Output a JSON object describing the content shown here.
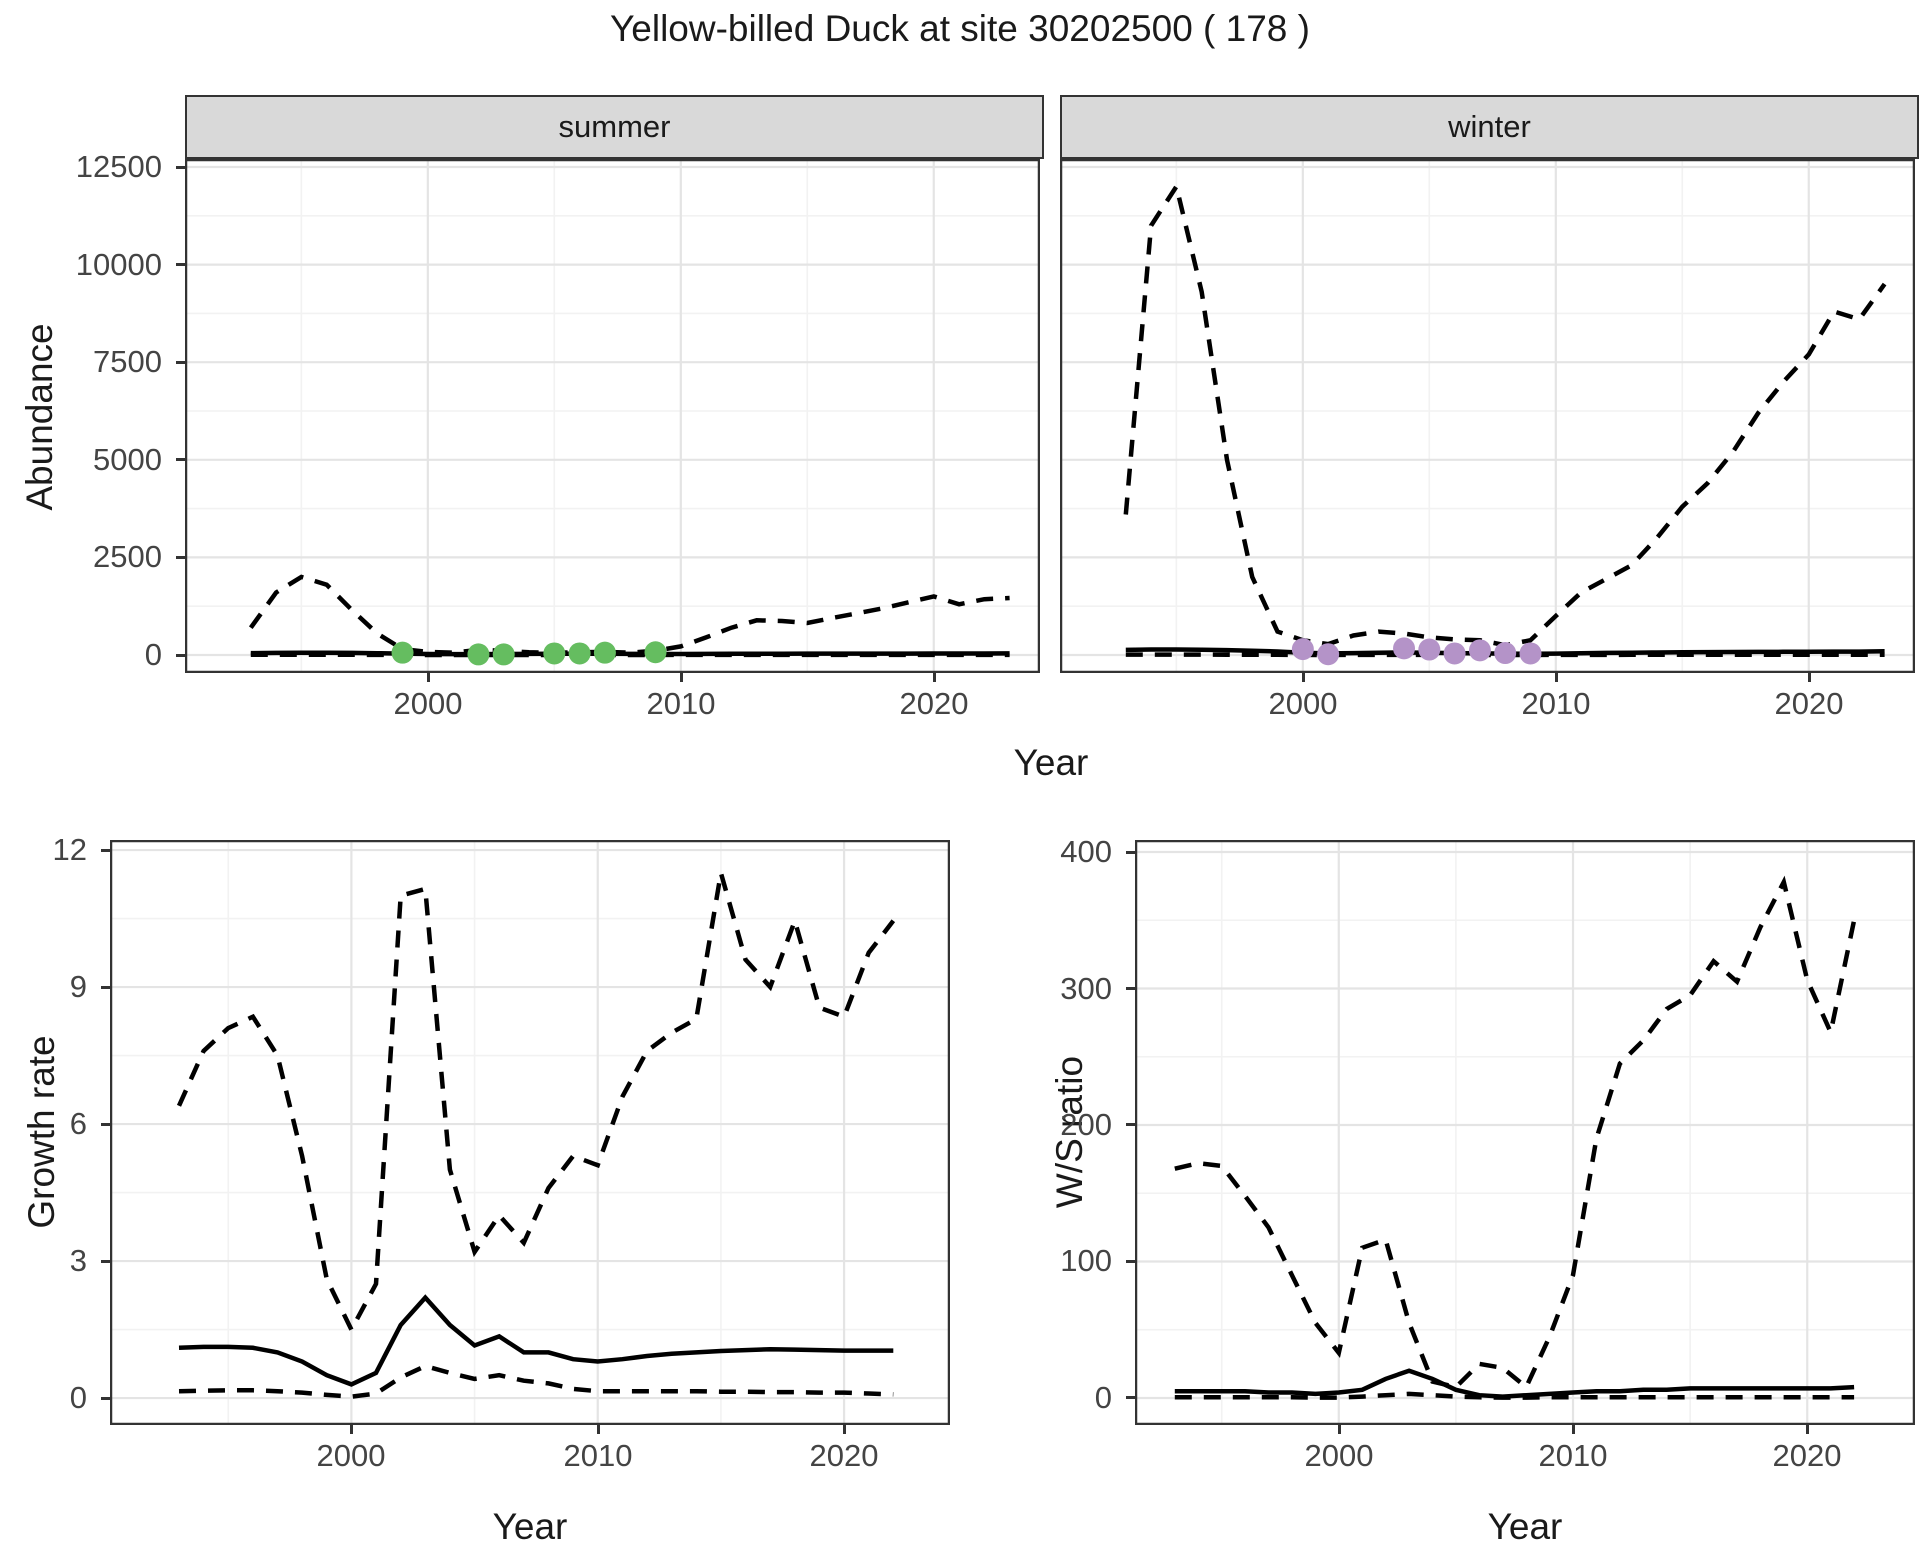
{
  "title": "Yellow-billed Duck at site 30202500 ( 178 )",
  "axis_titles": {
    "abundance": "Abundance",
    "year_top": "Year",
    "growth": "Growth rate",
    "year_bottom_left": "Year",
    "ws": "W/S ratio",
    "year_bottom_right": "Year"
  },
  "colors": {
    "line": "#000000",
    "summer_points": "#65bd60",
    "winter_points": "#b493c8",
    "strip_bg": "#d9d9d9",
    "panel_border": "#333333",
    "grid_major": "#e4e4e4",
    "grid_minor": "#f2f2f2",
    "tick_text": "#444444"
  },
  "chart_data": [
    {
      "type": "line",
      "id": "abundance-summer",
      "strip": "summer",
      "xlabel": "Year",
      "ylabel": "Abundance",
      "xlim": [
        1990.4,
        2024.2
      ],
      "ylim": [
        -461,
        12705
      ],
      "xticks": [
        2000,
        2010,
        2020
      ],
      "xticks_minor": [
        1995,
        2005,
        2015
      ],
      "yticks": [
        0,
        2500,
        5000,
        7500,
        10000,
        12500
      ],
      "yticks_minor": [
        1250,
        3750,
        6250,
        8750,
        11250
      ],
      "show_y_labels": true,
      "grid": true,
      "legend": "none",
      "years": [
        1993,
        1994,
        1995,
        1996,
        1997,
        1998,
        1999,
        2000,
        2001,
        2002,
        2003,
        2004,
        2005,
        2006,
        2007,
        2008,
        2009,
        2010,
        2011,
        2012,
        2013,
        2014,
        2015,
        2016,
        2017,
        2018,
        2019,
        2020,
        2021,
        2022,
        2023
      ],
      "series": [
        {
          "name": "upper_credible",
          "style": "dashed",
          "values": [
            700,
            1600,
            2000,
            1800,
            1150,
            550,
            150,
            80,
            60,
            130,
            110,
            70,
            60,
            70,
            80,
            60,
            110,
            220,
            450,
            700,
            890,
            870,
            820,
            950,
            1070,
            1200,
            1350,
            1500,
            1300,
            1430,
            1460
          ]
        },
        {
          "name": "median_estimate",
          "style": "solid",
          "values": [
            50,
            55,
            60,
            60,
            55,
            45,
            35,
            25,
            22,
            22,
            25,
            28,
            30,
            30,
            30,
            28,
            25,
            25,
            28,
            30,
            32,
            34,
            35,
            36,
            36,
            37,
            37,
            38,
            38,
            39,
            40
          ]
        },
        {
          "name": "lower_credible",
          "style": "dashed",
          "values": [
            5,
            5,
            5,
            5,
            4,
            3,
            2,
            1,
            1,
            1,
            1,
            1,
            1,
            1,
            1,
            1,
            1,
            2,
            2,
            2,
            3,
            3,
            3,
            3,
            3,
            3,
            3,
            3,
            3,
            3,
            3
          ]
        }
      ],
      "points": {
        "name": "observed-counts-summer",
        "color": "#65bd60",
        "x": [
          1999,
          2002,
          2003,
          2005,
          2006,
          2007,
          2009
        ],
        "y": [
          60,
          15,
          15,
          40,
          40,
          60,
          70
        ]
      }
    },
    {
      "type": "line",
      "id": "abundance-winter",
      "strip": "winter",
      "xlabel": "Year",
      "ylabel": "Abundance",
      "xlim": [
        1990.4,
        2024.2
      ],
      "ylim": [
        -461,
        12705
      ],
      "xticks": [
        2000,
        2010,
        2020
      ],
      "xticks_minor": [
        1995,
        2005,
        2015
      ],
      "yticks": [
        0,
        2500,
        5000,
        7500,
        10000,
        12500
      ],
      "yticks_minor": [
        1250,
        3750,
        6250,
        8750,
        11250
      ],
      "show_y_labels": false,
      "grid": true,
      "legend": "none",
      "years": [
        1993,
        1994,
        1995,
        1996,
        1997,
        1998,
        1999,
        2000,
        2001,
        2002,
        2003,
        2004,
        2005,
        2006,
        2007,
        2008,
        2009,
        2010,
        2011,
        2012,
        2013,
        2014,
        2015,
        2016,
        2017,
        2018,
        2019,
        2020,
        2021,
        2022,
        2023
      ],
      "series": [
        {
          "name": "upper_credible",
          "style": "dashed",
          "values": [
            3600,
            11000,
            12000,
            9300,
            5000,
            2000,
            600,
            380,
            280,
            500,
            600,
            550,
            450,
            400,
            380,
            250,
            380,
            1000,
            1600,
            1950,
            2300,
            3000,
            3800,
            4400,
            5200,
            6200,
            7000,
            7700,
            8800,
            8600,
            9500
          ]
        },
        {
          "name": "median_estimate",
          "style": "solid",
          "values": [
            130,
            140,
            140,
            135,
            125,
            110,
            90,
            60,
            40,
            50,
            60,
            65,
            60,
            50,
            40,
            35,
            30,
            35,
            45,
            55,
            60,
            65,
            70,
            75,
            78,
            80,
            82,
            84,
            86,
            88,
            95
          ]
        },
        {
          "name": "lower_credible",
          "style": "dashed",
          "values": [
            10,
            10,
            10,
            10,
            8,
            6,
            4,
            2,
            1,
            2,
            2,
            2,
            2,
            2,
            2,
            1,
            1,
            2,
            3,
            3,
            4,
            4,
            5,
            5,
            5,
            6,
            6,
            6,
            6,
            6,
            7
          ]
        }
      ],
      "points": {
        "name": "observed-counts-winter",
        "color": "#b493c8",
        "x": [
          2000,
          2001,
          2004,
          2005,
          2006,
          2007,
          2008,
          2009
        ],
        "y": [
          150,
          20,
          170,
          140,
          40,
          120,
          50,
          40
        ]
      }
    },
    {
      "type": "line",
      "id": "growth-rate",
      "strip": "",
      "xlabel": "Year",
      "ylabel": "Growth rate",
      "xlim": [
        1990.2,
        2024.3
      ],
      "ylim": [
        -0.59,
        12.22
      ],
      "xticks": [
        2000,
        2010,
        2020
      ],
      "xticks_minor": [
        1995,
        2005,
        2015
      ],
      "yticks": [
        0,
        3,
        6,
        9,
        12
      ],
      "yticks_minor": [
        1.5,
        4.5,
        7.5,
        10.5
      ],
      "show_y_labels": true,
      "grid": true,
      "legend": "none",
      "years": [
        1993,
        1994,
        1995,
        1996,
        1997,
        1998,
        1999,
        2000,
        2001,
        2002,
        2003,
        2004,
        2005,
        2006,
        2007,
        2008,
        2009,
        2010,
        2011,
        2012,
        2013,
        2014,
        2015,
        2016,
        2017,
        2018,
        2019,
        2020,
        2021,
        2022
      ],
      "series": [
        {
          "name": "upper_credible",
          "style": "dashed",
          "values": [
            6.4,
            7.6,
            8.1,
            8.35,
            7.5,
            5.3,
            2.6,
            1.5,
            2.5,
            11.0,
            11.15,
            5.0,
            3.2,
            4.0,
            3.4,
            4.6,
            5.3,
            5.1,
            6.6,
            7.6,
            8.0,
            8.3,
            11.5,
            9.6,
            9.0,
            10.45,
            8.55,
            8.35,
            9.75,
            10.45
          ]
        },
        {
          "name": "median_estimate",
          "style": "solid",
          "values": [
            1.1,
            1.12,
            1.12,
            1.1,
            1.0,
            0.8,
            0.5,
            0.3,
            0.55,
            1.6,
            2.2,
            1.6,
            1.15,
            1.35,
            1.0,
            1.0,
            0.85,
            0.8,
            0.85,
            0.92,
            0.97,
            1.0,
            1.03,
            1.05,
            1.07,
            1.06,
            1.05,
            1.04,
            1.04,
            1.04
          ]
        },
        {
          "name": "lower_credible",
          "style": "dashed",
          "values": [
            0.15,
            0.16,
            0.17,
            0.17,
            0.15,
            0.12,
            0.07,
            0.03,
            0.1,
            0.45,
            0.7,
            0.55,
            0.42,
            0.5,
            0.38,
            0.32,
            0.2,
            0.15,
            0.15,
            0.15,
            0.15,
            0.15,
            0.14,
            0.14,
            0.13,
            0.13,
            0.12,
            0.12,
            0.1,
            0.08
          ]
        }
      ],
      "points": null
    },
    {
      "type": "line",
      "id": "ws-ratio",
      "strip": "",
      "xlabel": "Year",
      "ylabel": "W/S ratio",
      "xlim": [
        1991.3,
        2024.6
      ],
      "ylim": [
        -19.8,
        408.8
      ],
      "xticks": [
        2000,
        2010,
        2020
      ],
      "xticks_minor": [
        1995,
        2005,
        2015
      ],
      "yticks": [
        0,
        100,
        200,
        300,
        400
      ],
      "yticks_minor": [
        50,
        150,
        250,
        350
      ],
      "show_y_labels": true,
      "grid": true,
      "legend": "none",
      "years": [
        1993,
        1994,
        1995,
        1996,
        1997,
        1998,
        1999,
        2000,
        2001,
        2002,
        2003,
        2004,
        2005,
        2006,
        2007,
        2008,
        2009,
        2010,
        2011,
        2012,
        2013,
        2014,
        2015,
        2016,
        2017,
        2018,
        2019,
        2020,
        2021,
        2022
      ],
      "series": [
        {
          "name": "upper_credible",
          "style": "dashed",
          "values": [
            168,
            172,
            170,
            148,
            125,
            90,
            55,
            33,
            110,
            116,
            55,
            12,
            8,
            25,
            22,
            8,
            45,
            90,
            190,
            245,
            262,
            285,
            295,
            320,
            305,
            345,
            378,
            306,
            268,
            350
          ]
        },
        {
          "name": "median_estimate",
          "style": "solid",
          "values": [
            5,
            5,
            5,
            5,
            4,
            4,
            3,
            4,
            6,
            14,
            20,
            14,
            6,
            2,
            1,
            2,
            3,
            4,
            5,
            5,
            6,
            6,
            7,
            7,
            7,
            7,
            7,
            7,
            7,
            8
          ]
        },
        {
          "name": "lower_credible",
          "style": "dashed",
          "values": [
            0.5,
            0.5,
            0.5,
            0.5,
            0.5,
            0.5,
            0.3,
            0.3,
            1,
            2,
            3,
            2,
            1,
            0.5,
            0.3,
            0.3,
            0.5,
            0.5,
            0.5,
            0.5,
            0.5,
            0.5,
            0.5,
            0.5,
            0.5,
            0.5,
            0.5,
            0.5,
            0.5,
            0.5
          ]
        }
      ],
      "points": null
    }
  ]
}
